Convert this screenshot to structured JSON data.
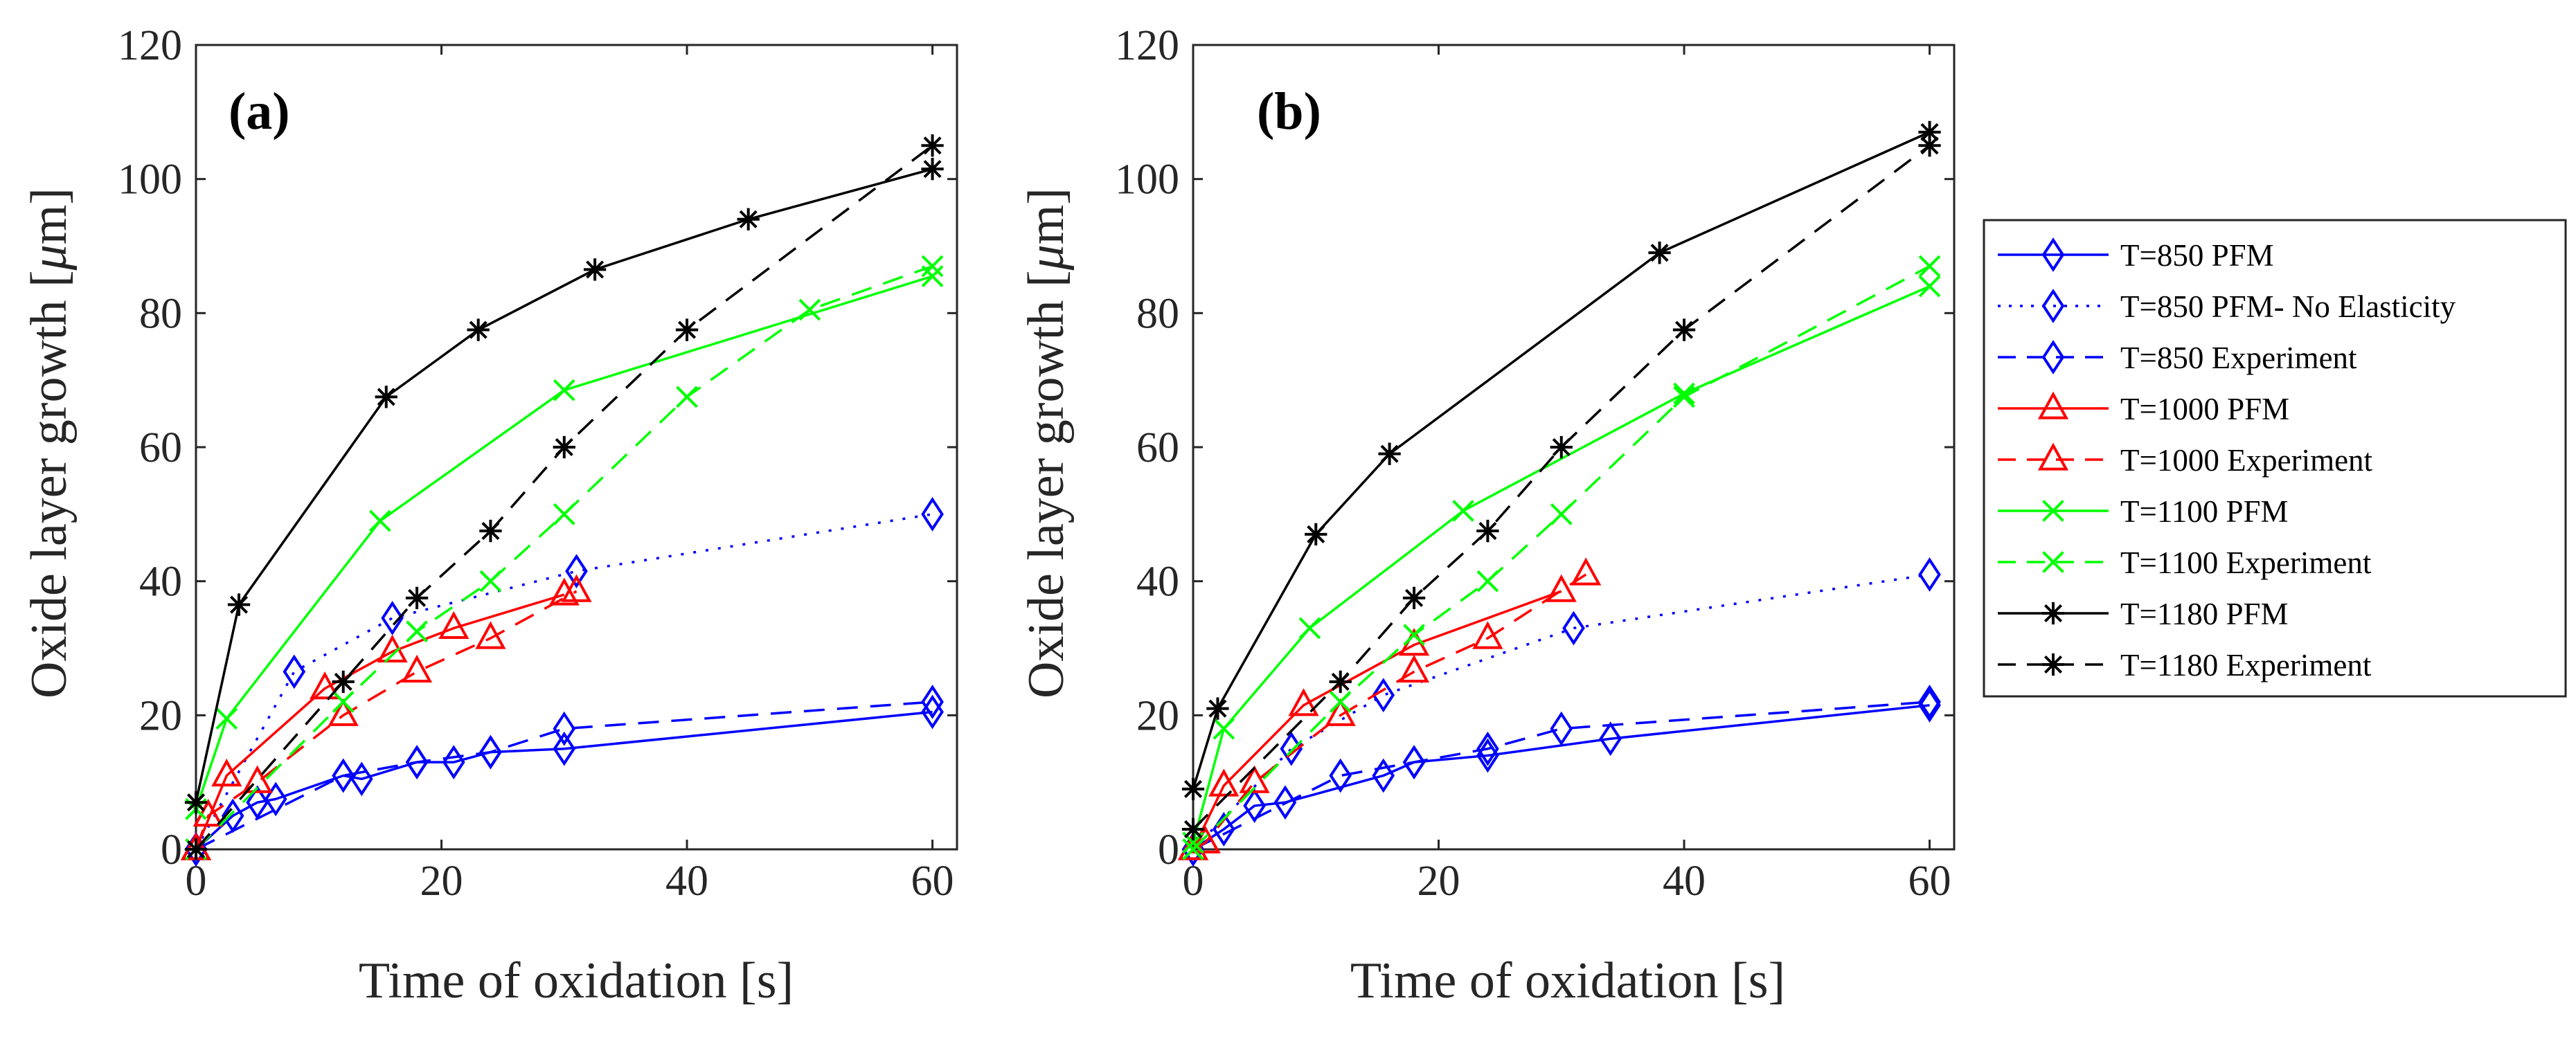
{
  "chart_data": [
    {
      "type": "line",
      "panel_label": "(a)",
      "xlabel": "Time of oxidation [s]",
      "ylabel_text": "Oxide layer growth [",
      "ylabel_unit": "μ",
      "ylabel_tail": "m]",
      "xlim": [
        0,
        62
      ],
      "ylim": [
        0,
        120
      ],
      "xticks": [
        0,
        20,
        40,
        60
      ],
      "yticks": [
        0,
        20,
        40,
        60,
        80,
        100,
        120
      ],
      "grid": false,
      "series": [
        {
          "name": "T=850 PFM",
          "color": "#0000ff",
          "dash": "solid",
          "marker": "diamond",
          "x": [
            0,
            3,
            5,
            6.5,
            12,
            13.5,
            18,
            21,
            24,
            30,
            60
          ],
          "y": [
            0,
            5,
            7,
            7.5,
            11,
            10.5,
            13,
            13,
            14.5,
            15,
            20.5
          ]
        },
        {
          "name": "T=850 PFM- No Elasticity",
          "color": "#0000ff",
          "dash": "dotted",
          "marker": "diamond",
          "x": [
            0,
            8,
            16,
            31,
            60
          ],
          "y": [
            0,
            26.5,
            34.5,
            41.5,
            50
          ]
        },
        {
          "name": "T=850 Experiment",
          "color": "#0000ff",
          "dash": "dashed",
          "marker": "diamond",
          "x": [
            0,
            12,
            18,
            24,
            30,
            60
          ],
          "y": [
            0,
            11,
            13,
            14.5,
            18,
            22
          ]
        },
        {
          "name": "T=1000 PFM",
          "color": "#ff0000",
          "dash": "solid",
          "marker": "triangle",
          "x": [
            0,
            2.5,
            10.5,
            16,
            21,
            30
          ],
          "y": [
            0,
            11,
            24,
            29.5,
            33,
            38
          ]
        },
        {
          "name": "T=1000 Experiment",
          "color": "#ff0000",
          "dash": "dashed",
          "marker": "triangle",
          "x": [
            0,
            1,
            5,
            12,
            18,
            24,
            31
          ],
          "y": [
            0,
            5,
            10,
            20,
            26.5,
            31.5,
            38.5
          ]
        },
        {
          "name": "T=1100 PFM",
          "color": "#00ff00",
          "dash": "solid",
          "marker": "x",
          "x": [
            0,
            2.5,
            15,
            30,
            60
          ],
          "y": [
            6,
            19.5,
            49,
            68.5,
            85.5
          ]
        },
        {
          "name": "T=1100 Experiment",
          "color": "#00ff00",
          "dash": "dashed",
          "marker": "x",
          "x": [
            0,
            12,
            18,
            24,
            30,
            40,
            50,
            60
          ],
          "y": [
            0,
            22,
            32.5,
            40,
            50,
            67.5,
            80.5,
            87
          ]
        },
        {
          "name": "T=1180 PFM",
          "color": "#000000",
          "dash": "solid",
          "marker": "star",
          "x": [
            0,
            3.5,
            15.5,
            23,
            32.5,
            45,
            60
          ],
          "y": [
            7,
            36.5,
            67.5,
            77.5,
            86.5,
            94,
            101.5
          ]
        },
        {
          "name": "T=1180 Experiment",
          "color": "#000000",
          "dash": "dashed",
          "marker": "star",
          "x": [
            0,
            12,
            18,
            24,
            30,
            40,
            60
          ],
          "y": [
            0,
            25,
            37.5,
            47.5,
            60,
            77.5,
            105
          ]
        }
      ]
    },
    {
      "type": "line",
      "panel_label": "(b)",
      "xlabel": "Time of oxidation [s]",
      "ylabel_text": "Oxide layer growth [",
      "ylabel_unit": "μ",
      "ylabel_tail": "m]",
      "xlim": [
        0,
        62
      ],
      "ylim": [
        0,
        120
      ],
      "xticks": [
        0,
        20,
        40,
        60
      ],
      "yticks": [
        0,
        20,
        40,
        60,
        80,
        100,
        120
      ],
      "grid": false,
      "series": [
        {
          "name": "T=850 PFM",
          "color": "#0000ff",
          "dash": "solid",
          "marker": "diamond",
          "x": [
            0,
            2.5,
            5,
            7.5,
            15.5,
            18,
            24,
            34,
            60
          ],
          "y": [
            0,
            3,
            6.5,
            7,
            11,
            13,
            14,
            16.5,
            21.5
          ]
        },
        {
          "name": "T=850 PFM- No Elasticity",
          "color": "#0000ff",
          "dash": "dotted",
          "marker": "diamond",
          "x": [
            0,
            8,
            15.5,
            31,
            60
          ],
          "y": [
            0,
            15,
            23,
            33,
            41
          ]
        },
        {
          "name": "T=850 Experiment",
          "color": "#0000ff",
          "dash": "dashed",
          "marker": "diamond",
          "x": [
            0,
            12,
            18,
            24,
            30,
            60
          ],
          "y": [
            0,
            11,
            13,
            15,
            18,
            22
          ]
        },
        {
          "name": "T=1000 PFM",
          "color": "#ff0000",
          "dash": "solid",
          "marker": "triangle",
          "x": [
            0,
            2.5,
            9,
            18,
            30
          ],
          "y": [
            0,
            9.5,
            21.5,
            30.5,
            38.5
          ]
        },
        {
          "name": "T=1000 Experiment",
          "color": "#ff0000",
          "dash": "dashed",
          "marker": "triangle",
          "x": [
            0,
            1,
            5,
            12,
            18,
            24,
            32
          ],
          "y": [
            0,
            1,
            10,
            20,
            26.5,
            31.5,
            41
          ]
        },
        {
          "name": "T=1100 PFM",
          "color": "#00ff00",
          "dash": "solid",
          "marker": "x",
          "x": [
            0,
            2.5,
            9.5,
            22,
            40,
            60
          ],
          "y": [
            1,
            18,
            33,
            50.5,
            68,
            84
          ]
        },
        {
          "name": "T=1100 Experiment",
          "color": "#00ff00",
          "dash": "dashed",
          "marker": "x",
          "x": [
            0,
            12,
            18,
            24,
            30,
            40,
            60
          ],
          "y": [
            0,
            22,
            32,
            40,
            50,
            67.5,
            87
          ]
        },
        {
          "name": "T=1180 PFM",
          "color": "#000000",
          "dash": "solid",
          "marker": "star",
          "x": [
            0,
            2,
            10,
            16,
            38,
            60
          ],
          "y": [
            9,
            21,
            47,
            59,
            89,
            107
          ]
        },
        {
          "name": "T=1180 Experiment",
          "color": "#000000",
          "dash": "dashed",
          "marker": "star",
          "x": [
            0,
            12,
            18,
            24,
            30,
            40,
            60
          ],
          "y": [
            3,
            25,
            37.5,
            47.5,
            60,
            77.5,
            105
          ]
        }
      ]
    }
  ],
  "legend": {
    "placement": "right",
    "entries": [
      {
        "label": "T=850 PFM",
        "color": "#0000ff",
        "dash": "solid",
        "marker": "diamond"
      },
      {
        "label": "T=850 PFM- No Elasticity",
        "color": "#0000ff",
        "dash": "dotted",
        "marker": "diamond"
      },
      {
        "label": "T=850 Experiment",
        "color": "#0000ff",
        "dash": "dashed",
        "marker": "diamond"
      },
      {
        "label": "T=1000 PFM",
        "color": "#ff0000",
        "dash": "solid",
        "marker": "triangle"
      },
      {
        "label": "T=1000 Experiment",
        "color": "#ff0000",
        "dash": "dashed",
        "marker": "triangle"
      },
      {
        "label": "T=1100 PFM",
        "color": "#00ff00",
        "dash": "solid",
        "marker": "x"
      },
      {
        "label": "T=1100 Experiment",
        "color": "#00ff00",
        "dash": "dashed",
        "marker": "x"
      },
      {
        "label": "T=1180 PFM",
        "color": "#000000",
        "dash": "solid",
        "marker": "star"
      },
      {
        "label": "T=1180 Experiment",
        "color": "#000000",
        "dash": "dashed",
        "marker": "star"
      }
    ]
  }
}
